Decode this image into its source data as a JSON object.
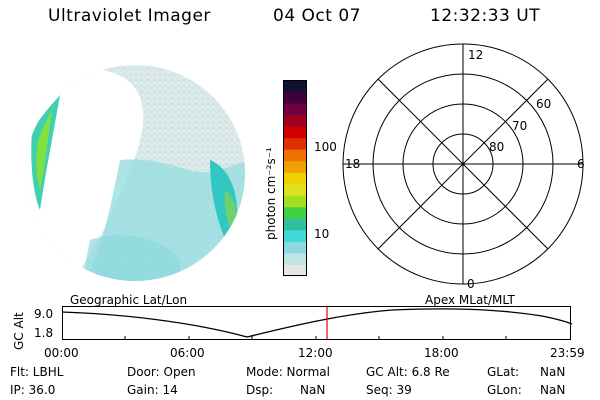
{
  "header": {
    "instrument": "Ultraviolet Imager",
    "date": "04 Oct 07",
    "time": "12:32:33 UT"
  },
  "colorbar": {
    "unit_label": "photon cm⁻²s⁻¹",
    "ticks": [
      "100",
      "10"
    ],
    "colors": [
      "#e6e6e6",
      "#bfe6e6",
      "#8cd9e0",
      "#40d9d9",
      "#30c0a0",
      "#40d040",
      "#a0e020",
      "#e0e020",
      "#f0d000",
      "#f0a000",
      "#f07000",
      "#e03000",
      "#d00000",
      "#a00020",
      "#700040",
      "#400040",
      "#101030"
    ]
  },
  "polar_plot": {
    "mlt_labels": {
      "top": "12",
      "left": "18",
      "right": "6",
      "bottom": "0"
    },
    "lat_labels": [
      "60",
      "70",
      "80"
    ]
  },
  "orbit_plot": {
    "left_title": "Geographic Lat/Lon",
    "right_title": "Apex MLat/MLT",
    "y_axis_label": "GC Alt",
    "y_ticks": [
      "9.0",
      "1.8"
    ],
    "x_ticks": [
      "00:00",
      "06:00",
      "12:00",
      "18:00",
      "23:59"
    ]
  },
  "status": {
    "flt": "Flt: LBHL",
    "ip": "IP: 36.0",
    "door": "Door: Open",
    "gain": "Gain: 14",
    "mode": "Mode: Normal",
    "dsp_label": "Dsp:",
    "dsp_value": "NaN",
    "gc_alt": "GC Alt: 6.8 Re",
    "seq": "Seq: 39",
    "glat_label": "GLat:",
    "glat_value": "NaN",
    "glon_label": "GLon:",
    "glon_value": "NaN"
  }
}
